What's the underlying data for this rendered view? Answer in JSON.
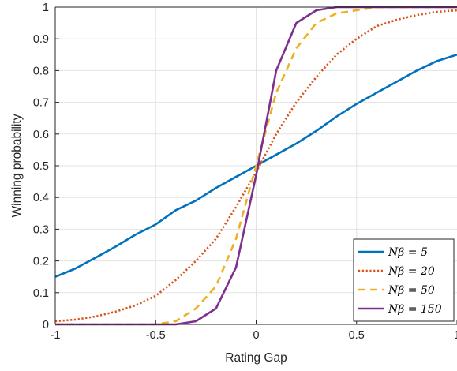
{
  "chart_data": {
    "type": "line",
    "xlabel": "Rating Gap",
    "ylabel": "Winning probability",
    "xlim": [
      -1,
      1
    ],
    "ylim": [
      0,
      1
    ],
    "grid": true,
    "legend_position": "bottom-right",
    "xticks": [
      -1,
      -0.5,
      0,
      0.5,
      1
    ],
    "xtick_labels": [
      "-1",
      "-0.5",
      "0",
      "0.5",
      "1"
    ],
    "yticks": [
      0,
      0.1,
      0.2,
      0.3,
      0.4,
      0.5,
      0.6,
      0.7,
      0.8,
      0.9,
      1
    ],
    "ytick_labels": [
      "0",
      "0.1",
      "0.2",
      "0.3",
      "0.4",
      "0.5",
      "0.6",
      "0.7",
      "0.8",
      "0.9",
      "1"
    ],
    "x": [
      -1,
      -0.9,
      -0.8,
      -0.7,
      -0.6,
      -0.5,
      -0.4,
      -0.3,
      -0.2,
      -0.1,
      0,
      0.1,
      0.2,
      0.3,
      0.4,
      0.5,
      0.6,
      0.7,
      0.8,
      0.9,
      1
    ],
    "series": [
      {
        "name": "Nβ = 5",
        "color": "#0072BD",
        "dash": "solid",
        "values": [
          0.15,
          0.176,
          0.21,
          0.245,
          0.283,
          0.315,
          0.36,
          0.39,
          0.43,
          0.465,
          0.5,
          0.535,
          0.57,
          0.61,
          0.655,
          0.695,
          0.73,
          0.765,
          0.8,
          0.83,
          0.85
        ]
      },
      {
        "name": "Nβ = 20",
        "color": "#D95319",
        "dash": "dotted",
        "values": [
          0.01,
          0.015,
          0.025,
          0.04,
          0.06,
          0.09,
          0.14,
          0.2,
          0.27,
          0.37,
          0.48,
          0.6,
          0.7,
          0.78,
          0.85,
          0.9,
          0.94,
          0.96,
          0.975,
          0.985,
          0.99
        ]
      },
      {
        "name": "Nβ = 50",
        "color": "#EDB120",
        "dash": "dashed",
        "values": [
          0.0,
          0.0,
          0.0,
          0.0,
          0.0,
          0.0,
          0.01,
          0.05,
          0.12,
          0.27,
          0.5,
          0.73,
          0.87,
          0.95,
          0.98,
          0.99,
          1.0,
          1.0,
          1.0,
          1.0,
          1.0
        ]
      },
      {
        "name": "Nβ = 150",
        "color": "#7E2F8E",
        "dash": "solid",
        "values": [
          0.0,
          0.0,
          0.0,
          0.0,
          0.0,
          0.0,
          0.0,
          0.01,
          0.05,
          0.18,
          0.47,
          0.8,
          0.95,
          0.99,
          1.0,
          1.0,
          1.0,
          1.0,
          1.0,
          1.0,
          1.0
        ]
      }
    ]
  }
}
